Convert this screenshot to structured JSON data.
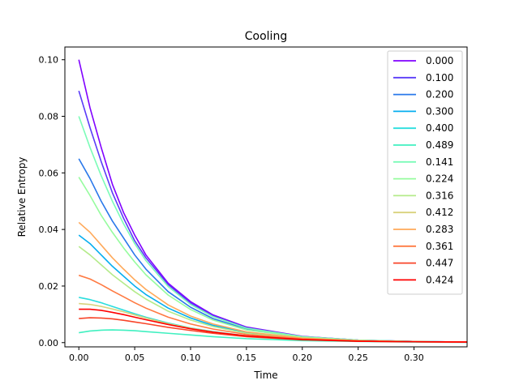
{
  "chart_data": {
    "type": "line",
    "title": "Cooling",
    "xlabel": "Time",
    "ylabel": "Relative Entropy",
    "xlim": [
      -0.0125,
      0.3475
    ],
    "ylim": [
      -0.0015,
      0.1045
    ],
    "x_ticks": [
      0.0,
      0.05,
      0.1,
      0.15,
      0.2,
      0.25,
      0.3
    ],
    "x_tick_labels": [
      "0.00",
      "0.05",
      "0.10",
      "0.15",
      "0.20",
      "0.25",
      "0.30"
    ],
    "y_ticks": [
      0.0,
      0.02,
      0.04,
      0.06,
      0.08,
      0.1
    ],
    "y_tick_labels": [
      "0.00",
      "0.02",
      "0.04",
      "0.06",
      "0.08",
      "0.10"
    ],
    "grid": false,
    "legend_position": "top-right",
    "x": [
      0.0,
      0.01,
      0.02,
      0.03,
      0.04,
      0.05,
      0.06,
      0.08,
      0.1,
      0.12,
      0.15,
      0.2,
      0.25,
      0.3,
      0.35
    ],
    "series": [
      {
        "name": "0.000",
        "color": "#8000ff",
        "values": [
          0.1,
          0.083,
          0.069,
          0.056,
          0.046,
          0.038,
          0.031,
          0.021,
          0.0145,
          0.0098,
          0.0055,
          0.0022,
          0.0009,
          0.0004,
          0.0002
        ]
      },
      {
        "name": "0.100",
        "color": "#5a3bf8",
        "values": [
          0.089,
          0.076,
          0.064,
          0.053,
          0.044,
          0.036,
          0.03,
          0.0205,
          0.014,
          0.0095,
          0.0053,
          0.0021,
          0.0009,
          0.0004,
          0.0002
        ]
      },
      {
        "name": "0.200",
        "color": "#2a78ea",
        "values": [
          0.065,
          0.058,
          0.05,
          0.043,
          0.037,
          0.031,
          0.026,
          0.018,
          0.0125,
          0.0085,
          0.0048,
          0.002,
          0.0008,
          0.0004,
          0.0002
        ]
      },
      {
        "name": "0.300",
        "color": "#06aeef",
        "values": [
          0.038,
          0.035,
          0.031,
          0.027,
          0.0235,
          0.02,
          0.017,
          0.0122,
          0.0087,
          0.0061,
          0.0036,
          0.0015,
          0.0007,
          0.0003,
          0.0002
        ]
      },
      {
        "name": "0.400",
        "color": "#2adddd",
        "values": [
          0.016,
          0.0152,
          0.0141,
          0.0128,
          0.0115,
          0.0102,
          0.009,
          0.0069,
          0.0052,
          0.0039,
          0.0024,
          0.0011,
          0.0005,
          0.0003,
          0.0002
        ]
      },
      {
        "name": "0.489",
        "color": "#40f0c0",
        "values": [
          0.0035,
          0.0041,
          0.0044,
          0.0045,
          0.0044,
          0.0042,
          0.0039,
          0.0033,
          0.0027,
          0.0021,
          0.0014,
          0.0007,
          0.0004,
          0.0002,
          0.0001
        ]
      },
      {
        "name": "0.141",
        "color": "#7cfcb8",
        "values": [
          0.08,
          0.069,
          0.059,
          0.05,
          0.042,
          0.035,
          0.029,
          0.0198,
          0.0135,
          0.0092,
          0.0051,
          0.0021,
          0.0009,
          0.0004,
          0.0002
        ]
      },
      {
        "name": "0.224",
        "color": "#96fc9e",
        "values": [
          0.0585,
          0.052,
          0.045,
          0.039,
          0.0335,
          0.0285,
          0.024,
          0.0168,
          0.0117,
          0.008,
          0.0045,
          0.0019,
          0.0008,
          0.0004,
          0.0002
        ]
      },
      {
        "name": "0.316",
        "color": "#b4eb8a",
        "values": [
          0.034,
          0.031,
          0.0275,
          0.024,
          0.021,
          0.018,
          0.0154,
          0.0111,
          0.008,
          0.0057,
          0.0033,
          0.0014,
          0.0006,
          0.0003,
          0.0002
        ]
      },
      {
        "name": "0.412",
        "color": "#d8d27c",
        "values": [
          0.0138,
          0.0135,
          0.0128,
          0.0119,
          0.0109,
          0.0098,
          0.0087,
          0.0067,
          0.0051,
          0.0038,
          0.0024,
          0.0011,
          0.0005,
          0.0003,
          0.0002
        ]
      },
      {
        "name": "0.283",
        "color": "#ffa95a",
        "values": [
          0.0425,
          0.039,
          0.0345,
          0.03,
          0.026,
          0.0222,
          0.0188,
          0.0133,
          0.0094,
          0.0066,
          0.0038,
          0.0016,
          0.0007,
          0.0003,
          0.0002
        ]
      },
      {
        "name": "0.361",
        "color": "#ff7a42",
        "values": [
          0.0238,
          0.0225,
          0.0205,
          0.0183,
          0.0162,
          0.0141,
          0.0122,
          0.009,
          0.0066,
          0.0048,
          0.0029,
          0.0013,
          0.0006,
          0.0003,
          0.0002
        ]
      },
      {
        "name": "0.447",
        "color": "#f8452a",
        "values": [
          0.0085,
          0.0088,
          0.0087,
          0.0084,
          0.0079,
          0.0073,
          0.0067,
          0.0054,
          0.0043,
          0.0033,
          0.0021,
          0.001,
          0.0005,
          0.0003,
          0.0002
        ]
      },
      {
        "name": "0.424",
        "color": "#ff0000",
        "values": [
          0.0118,
          0.0118,
          0.0114,
          0.0107,
          0.0099,
          0.009,
          0.0081,
          0.0064,
          0.0049,
          0.0037,
          0.0024,
          0.0011,
          0.0005,
          0.0003,
          0.0002
        ]
      }
    ]
  }
}
